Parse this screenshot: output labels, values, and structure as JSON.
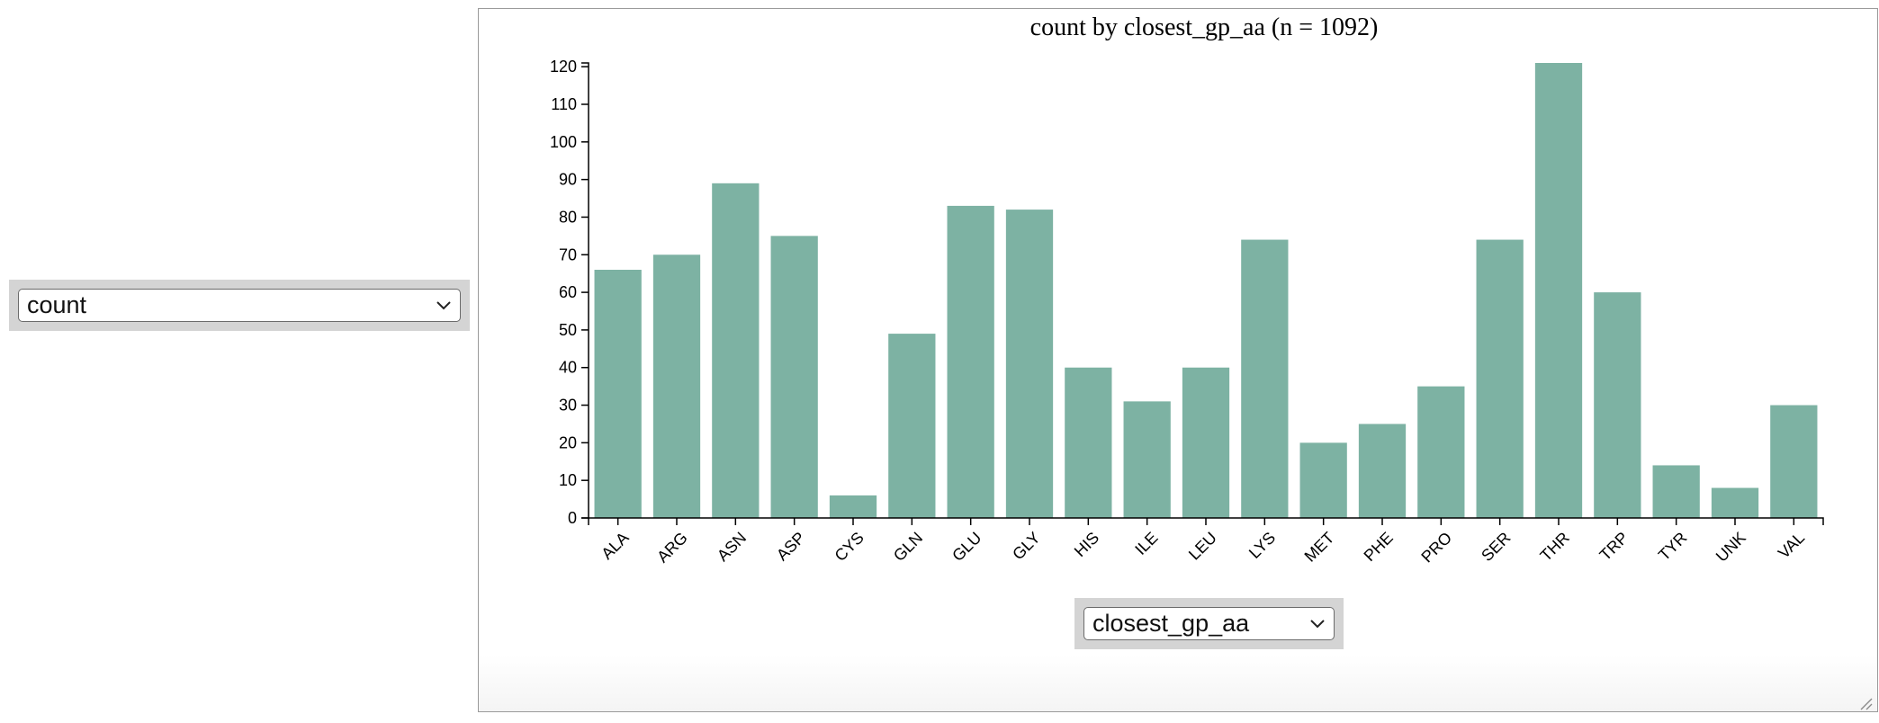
{
  "controls": {
    "y_select_value": "count",
    "x_select_value": "closest_gp_aa"
  },
  "colors": {
    "bar": "#7db2a3",
    "axis": "#000000"
  },
  "chart_data": {
    "type": "bar",
    "title": "count by closest_gp_aa (n = 1092)",
    "xlabel": "",
    "ylabel": "",
    "categories": [
      "ALA",
      "ARG",
      "ASN",
      "ASP",
      "CYS",
      "GLN",
      "GLU",
      "GLY",
      "HIS",
      "ILE",
      "LEU",
      "LYS",
      "MET",
      "PHE",
      "PRO",
      "SER",
      "THR",
      "TRP",
      "TYR",
      "UNK",
      "VAL"
    ],
    "values": [
      66,
      70,
      89,
      75,
      6,
      49,
      83,
      82,
      40,
      31,
      40,
      74,
      20,
      25,
      35,
      74,
      121,
      60,
      14,
      8,
      30
    ],
    "ylim": [
      0,
      121
    ],
    "yticks": [
      0,
      10,
      20,
      30,
      40,
      50,
      60,
      70,
      80,
      90,
      100,
      110,
      120
    ],
    "grid": false,
    "legend": "none"
  }
}
